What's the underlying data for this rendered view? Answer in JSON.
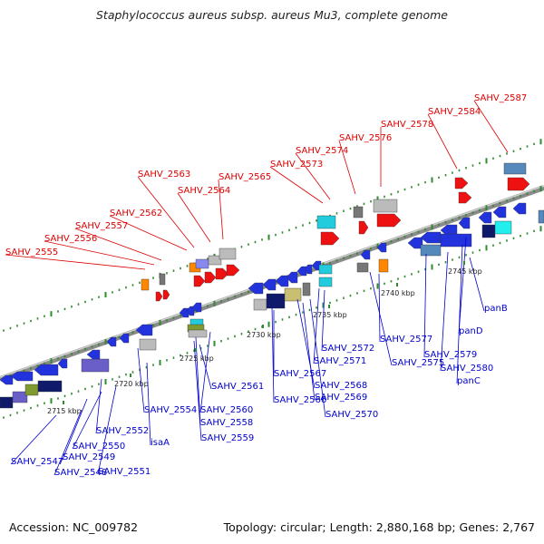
{
  "header": {
    "title": "Staphylococcus aureus subsp. aureus Mu3, complete genome"
  },
  "footer": {
    "accession": "Accession: NC_009782",
    "summary": "Topology: circular; Length: 2,880,168 bp; Genes: 2,767"
  },
  "colors": {
    "label_forward": "#dd0000",
    "label_reverse": "#0000cc",
    "backbone": "#999999",
    "tick": "#2e8b2e"
  },
  "ruler": [
    "2715 kbp",
    "2720 kbp",
    "2725 kbp",
    "2730 kbp",
    "2735 kbp",
    "2740 kbp",
    "2745 kbp"
  ],
  "forward_genes": [
    "SAHV_2555",
    "SAHV_2556",
    "SAHV_2557",
    "SAHV_2562",
    "SAHV_2563",
    "SAHV_2564",
    "SAHV_2565",
    "SAHV_2573",
    "SAHV_2574",
    "SAHV_2576",
    "SAHV_2578",
    "SAHV_2584",
    "SAHV_2587"
  ],
  "reverse_genes": [
    "SAHV_2547",
    "SAHV_2548",
    "SAHV_2549",
    "SAHV_2550",
    "SAHV_2551",
    "SAHV_2552",
    "isaA",
    "SAHV_2554",
    "SAHV_2558",
    "SAHV_2559",
    "SAHV_2560",
    "SAHV_2561",
    "SAHV_2566",
    "SAHV_2567",
    "SAHV_2568",
    "SAHV_2569",
    "SAHV_2570",
    "SAHV_2571",
    "SAHV_2572",
    "SAHV_2575",
    "SAHV_2577",
    "SAHV_2579",
    "SAHV_2580",
    "panC",
    "panD",
    "panB"
  ]
}
